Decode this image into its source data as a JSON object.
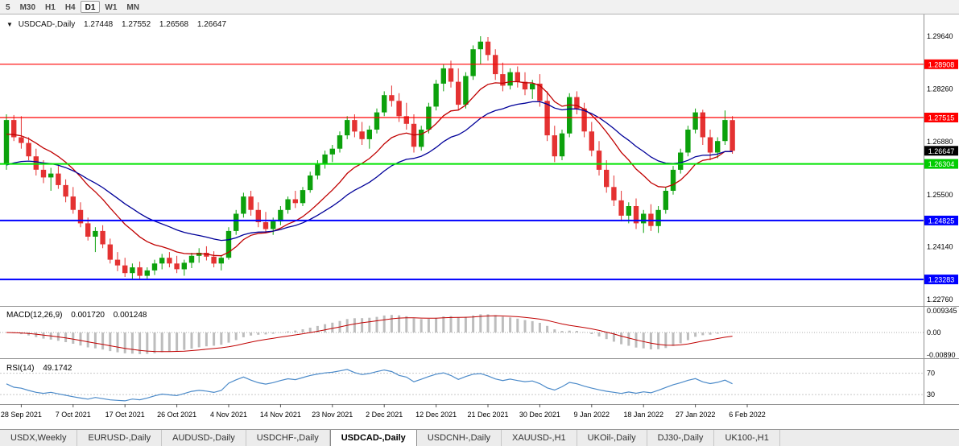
{
  "toolbar": {
    "timeframes": [
      "5",
      "M30",
      "H1",
      "H4",
      "D1",
      "W1",
      "MN"
    ],
    "active": "D1"
  },
  "header": {
    "icon": "▼",
    "symbol": "USDCAD-,Daily",
    "open": "1.27448",
    "high": "1.27552",
    "low": "1.26568",
    "close": "1.26647"
  },
  "indicators": {
    "macd": {
      "label": "MACD(12,26,9)",
      "value_main": "0.001720",
      "value_signal": "0.001248",
      "axis_top": "0.009345",
      "axis_zero": "0.00",
      "axis_bottom": "-0.00890"
    },
    "rsi": {
      "label": "RSI(14)",
      "value": "49.1742",
      "level_top": "70",
      "level_bottom": "30"
    }
  },
  "price_axis": {
    "labels": [
      {
        "text": "1.29640",
        "value": 1.2964
      },
      {
        "text": "1.28260",
        "value": 1.2826
      },
      {
        "text": "1.26880",
        "value": 1.2688
      },
      {
        "text": "1.25500",
        "value": 1.255
      },
      {
        "text": "1.24140",
        "value": 1.2414
      },
      {
        "text": "1.22760",
        "value": 1.2276
      }
    ],
    "badges": [
      {
        "text": "1.28908",
        "value": 1.28908,
        "bg": "#FF0000",
        "type": "resistance-level"
      },
      {
        "text": "1.27515",
        "value": 1.27515,
        "bg": "#FF0000",
        "type": "resistance-level"
      },
      {
        "text": "1.26647",
        "value": 1.26647,
        "bg": "#000000",
        "type": "current-price"
      },
      {
        "text": "1.26304",
        "value": 1.26304,
        "bg": "#00CC00",
        "type": "support-level"
      },
      {
        "text": "1.24825",
        "value": 1.24825,
        "bg": "#0000FF",
        "type": "support-level"
      },
      {
        "text": "1.23283",
        "value": 1.23283,
        "bg": "#0000FF",
        "type": "support-level"
      }
    ]
  },
  "levels": [
    {
      "value": 1.28908,
      "color": "#FF0000",
      "width": 1.2
    },
    {
      "value": 1.27515,
      "color": "#FF0000",
      "width": 1.2
    },
    {
      "value": 1.26304,
      "color": "#00E400",
      "width": 2
    },
    {
      "value": 1.24825,
      "color": "#0000FF",
      "width": 2
    },
    {
      "value": 1.23283,
      "color": "#0000FF",
      "width": 2
    }
  ],
  "colors": {
    "candle_up": "#0CA10C",
    "candle_down": "#E43232",
    "ma_fast": "#C00000",
    "ma_slow": "#000099",
    "macd_hist": "#BDBDBD",
    "macd_signal": "#C00000",
    "rsi_line": "#4B8AC9"
  },
  "chart_data": {
    "type": "candlestick",
    "symbol": "USDCAD-",
    "timeframe": "Daily",
    "last_bar": {
      "open": 1.27448,
      "high": 1.27552,
      "low": 1.26568,
      "close": 1.26647
    },
    "y_axis_range": [
      1.2263,
      1.3012
    ],
    "overlays": {
      "ma_fast": {
        "type": "EMA",
        "period": 13,
        "color": "#C00000"
      },
      "ma_slow": {
        "type": "EMA",
        "period": 26,
        "color": "#000099"
      }
    },
    "sub_indicators": [
      {
        "name": "MACD",
        "params": "12,26,9",
        "current": [
          0.00172,
          0.001248
        ],
        "axis": [
          0.009345,
          0,
          -0.0089
        ]
      },
      {
        "name": "RSI",
        "params": "14",
        "current": 49.1742,
        "levels": [
          70,
          30
        ]
      }
    ],
    "date_ticks": [
      {
        "label": "28 Sep 2021",
        "index": 2
      },
      {
        "label": "7 Oct 2021",
        "index": 9
      },
      {
        "label": "17 Oct 2021",
        "index": 16
      },
      {
        "label": "26 Oct 2021",
        "index": 23
      },
      {
        "label": "4 Nov 2021",
        "index": 30
      },
      {
        "label": "14 Nov 2021",
        "index": 37
      },
      {
        "label": "23 Nov 2021",
        "index": 44
      },
      {
        "label": "2 Dec 2021",
        "index": 51
      },
      {
        "label": "12 Dec 2021",
        "index": 58
      },
      {
        "label": "21 Dec 2021",
        "index": 65
      },
      {
        "label": "30 Dec 2021",
        "index": 72
      },
      {
        "label": "9 Jan 2022",
        "index": 79
      },
      {
        "label": "18 Jan 2022",
        "index": 86
      },
      {
        "label": "27 Jan 2022",
        "index": 93
      },
      {
        "label": "6 Feb 2022",
        "index": 100
      }
    ],
    "candles": [
      [
        1.263,
        1.276,
        1.2615,
        1.2745
      ],
      [
        1.2745,
        1.2758,
        1.269,
        1.27
      ],
      [
        1.27,
        1.2755,
        1.267,
        1.2685
      ],
      [
        1.2685,
        1.27,
        1.264,
        1.265
      ],
      [
        1.265,
        1.267,
        1.26,
        1.2615
      ],
      [
        1.2615,
        1.264,
        1.258,
        1.2595
      ],
      [
        1.2595,
        1.262,
        1.256,
        1.2605
      ],
      [
        1.2605,
        1.2625,
        1.2565,
        1.2575
      ],
      [
        1.2575,
        1.259,
        1.253,
        1.2545
      ],
      [
        1.2545,
        1.257,
        1.25,
        1.251
      ],
      [
        1.251,
        1.253,
        1.2465,
        1.2475
      ],
      [
        1.2475,
        1.249,
        1.243,
        1.244
      ],
      [
        1.244,
        1.2465,
        1.24,
        1.2455
      ],
      [
        1.2455,
        1.247,
        1.241,
        1.242
      ],
      [
        1.242,
        1.2435,
        1.237,
        1.238
      ],
      [
        1.238,
        1.24,
        1.235,
        1.2365
      ],
      [
        1.2365,
        1.2385,
        1.2335,
        1.2345
      ],
      [
        1.2345,
        1.237,
        1.233,
        1.236
      ],
      [
        1.236,
        1.2375,
        1.2328,
        1.2338
      ],
      [
        1.2338,
        1.236,
        1.2329,
        1.2352
      ],
      [
        1.2352,
        1.238,
        1.234,
        1.237
      ],
      [
        1.237,
        1.2395,
        1.2355,
        1.2385
      ],
      [
        1.2385,
        1.24,
        1.236,
        1.237
      ],
      [
        1.237,
        1.239,
        1.2345,
        1.2355
      ],
      [
        1.2355,
        1.238,
        1.2338,
        1.2372
      ],
      [
        1.2372,
        1.2398,
        1.2358,
        1.239
      ],
      [
        1.239,
        1.241,
        1.2372,
        1.2398
      ],
      [
        1.2398,
        1.2415,
        1.2378,
        1.2388
      ],
      [
        1.2388,
        1.2402,
        1.236,
        1.237
      ],
      [
        1.237,
        1.2392,
        1.2352,
        1.2385
      ],
      [
        1.2385,
        1.2465,
        1.238,
        1.2455
      ],
      [
        1.2455,
        1.251,
        1.2445,
        1.25
      ],
      [
        1.25,
        1.2555,
        1.249,
        1.2545
      ],
      [
        1.2545,
        1.256,
        1.2495,
        1.251
      ],
      [
        1.251,
        1.253,
        1.2465,
        1.2478
      ],
      [
        1.2478,
        1.2505,
        1.245,
        1.246
      ],
      [
        1.246,
        1.249,
        1.2445,
        1.248
      ],
      [
        1.248,
        1.252,
        1.247,
        1.251
      ],
      [
        1.251,
        1.2545,
        1.25,
        1.2538
      ],
      [
        1.2538,
        1.256,
        1.2515,
        1.2528
      ],
      [
        1.2528,
        1.257,
        1.252,
        1.2562
      ],
      [
        1.2562,
        1.261,
        1.2555,
        1.26
      ],
      [
        1.26,
        1.264,
        1.259,
        1.263
      ],
      [
        1.263,
        1.2665,
        1.2618,
        1.2655
      ],
      [
        1.2655,
        1.268,
        1.2635,
        1.267
      ],
      [
        1.267,
        1.2715,
        1.266,
        1.2705
      ],
      [
        1.2705,
        1.2755,
        1.2695,
        1.2745
      ],
      [
        1.2745,
        1.276,
        1.27,
        1.2715
      ],
      [
        1.2715,
        1.274,
        1.268,
        1.2695
      ],
      [
        1.2695,
        1.273,
        1.267,
        1.272
      ],
      [
        1.272,
        1.2775,
        1.271,
        1.2765
      ],
      [
        1.2765,
        1.282,
        1.2755,
        1.281
      ],
      [
        1.281,
        1.2835,
        1.278,
        1.2795
      ],
      [
        1.2795,
        1.2815,
        1.274,
        1.2755
      ],
      [
        1.2755,
        1.279,
        1.272,
        1.2735
      ],
      [
        1.2735,
        1.276,
        1.266,
        1.2675
      ],
      [
        1.2675,
        1.273,
        1.2665,
        1.272
      ],
      [
        1.272,
        1.279,
        1.271,
        1.278
      ],
      [
        1.278,
        1.285,
        1.277,
        1.284
      ],
      [
        1.284,
        1.289,
        1.282,
        1.288
      ],
      [
        1.288,
        1.29,
        1.283,
        1.2845
      ],
      [
        1.2845,
        1.288,
        1.277,
        1.2785
      ],
      [
        1.2785,
        1.287,
        1.2775,
        1.286
      ],
      [
        1.286,
        1.294,
        1.285,
        1.293
      ],
      [
        1.293,
        1.2964,
        1.289,
        1.295
      ],
      [
        1.295,
        1.2962,
        1.29,
        1.2915
      ],
      [
        1.2915,
        1.293,
        1.285,
        1.2865
      ],
      [
        1.2865,
        1.2895,
        1.282,
        1.2835
      ],
      [
        1.2835,
        1.288,
        1.2825,
        1.287
      ],
      [
        1.287,
        1.2885,
        1.283,
        1.2845
      ],
      [
        1.2845,
        1.287,
        1.281,
        1.2825
      ],
      [
        1.2825,
        1.285,
        1.28,
        1.284
      ],
      [
        1.284,
        1.2865,
        1.278,
        1.2795
      ],
      [
        1.2795,
        1.282,
        1.269,
        1.2705
      ],
      [
        1.2705,
        1.273,
        1.2635,
        1.265
      ],
      [
        1.265,
        1.272,
        1.264,
        1.271
      ],
      [
        1.271,
        1.2815,
        1.27,
        1.2805
      ],
      [
        1.2805,
        1.282,
        1.276,
        1.2775
      ],
      [
        1.2775,
        1.279,
        1.27,
        1.2715
      ],
      [
        1.2715,
        1.274,
        1.265,
        1.2665
      ],
      [
        1.2665,
        1.269,
        1.26,
        1.2615
      ],
      [
        1.2615,
        1.264,
        1.2555,
        1.257
      ],
      [
        1.257,
        1.26,
        1.252,
        1.2535
      ],
      [
        1.2535,
        1.256,
        1.248,
        1.2495
      ],
      [
        1.2495,
        1.253,
        1.2475,
        1.252
      ],
      [
        1.252,
        1.254,
        1.246,
        1.2475
      ],
      [
        1.2475,
        1.251,
        1.245,
        1.25
      ],
      [
        1.25,
        1.2525,
        1.2455,
        1.2468
      ],
      [
        1.2468,
        1.252,
        1.245,
        1.251
      ],
      [
        1.251,
        1.257,
        1.25,
        1.256
      ],
      [
        1.256,
        1.2625,
        1.255,
        1.2615
      ],
      [
        1.2615,
        1.267,
        1.2605,
        1.266
      ],
      [
        1.266,
        1.273,
        1.265,
        1.272
      ],
      [
        1.272,
        1.2775,
        1.271,
        1.2765
      ],
      [
        1.2765,
        1.2772,
        1.268,
        1.27
      ],
      [
        1.27,
        1.272,
        1.264,
        1.266
      ],
      [
        1.266,
        1.27,
        1.2645,
        1.269
      ],
      [
        1.269,
        1.277,
        1.268,
        1.2745
      ],
      [
        1.27448,
        1.27552,
        1.26568,
        1.26647
      ]
    ]
  },
  "tabs": {
    "items": [
      "USDX,Weekly",
      "EURUSD-,Daily",
      "AUDUSD-,Daily",
      "USDCHF-,Daily",
      "USDCAD-,Daily",
      "USDCNH-,Daily",
      "XAUUSD-,H1",
      "UKOil-,Daily",
      "DJ30-,Daily",
      "UK100-,H1"
    ],
    "active_index": 4
  }
}
